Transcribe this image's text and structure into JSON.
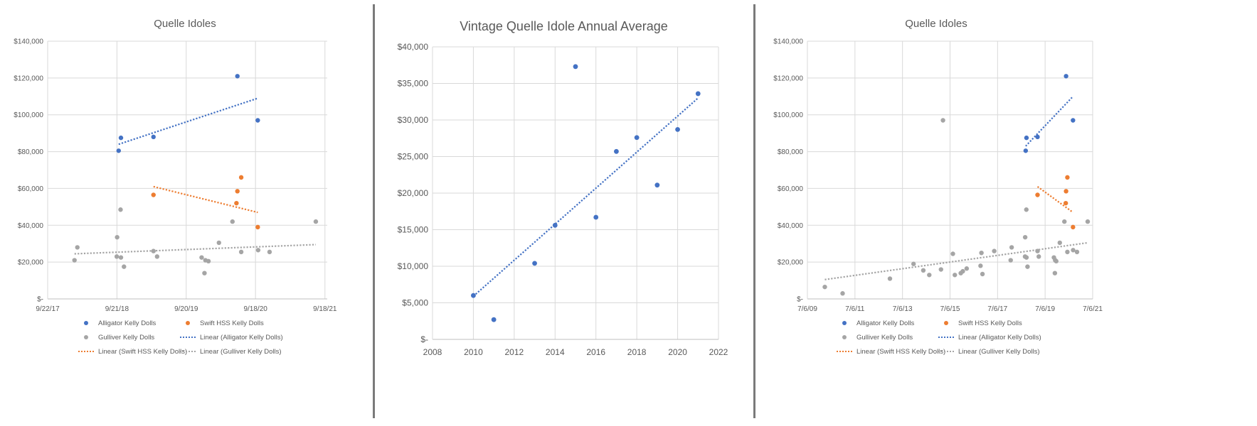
{
  "chart_data": [
    {
      "type": "scatter",
      "title": "Quelle Idoles",
      "xlabel": "",
      "ylabel": "",
      "x_axis": "date",
      "xlim": [
        "2017-09-22",
        "2021-09-30"
      ],
      "ylim": [
        0,
        140000
      ],
      "x_ticks": [
        "9/22/17",
        "9/21/18",
        "9/20/19",
        "9/18/20",
        "9/18/21"
      ],
      "y_ticks": [
        "$-",
        "$20,000",
        "$40,000",
        "$60,000",
        "$80,000",
        "$100,000",
        "$120,000",
        "$140,000"
      ],
      "grid": true,
      "legend_position": "bottom",
      "series": [
        {
          "name": "Alligator Kelly Dolls",
          "color": "#4472C4",
          "points": [
            [
              "2018-09-30",
              80500
            ],
            [
              "2018-10-12",
              87500
            ],
            [
              "2019-04-01",
              88000
            ],
            [
              "2020-06-15",
              121000
            ],
            [
              "2020-09-30",
              97000
            ]
          ]
        },
        {
          "name": "Swift HSS Kelly Dolls",
          "color": "#ED7D31",
          "points": [
            [
              "2019-04-01",
              56500
            ],
            [
              "2020-06-10",
              52000
            ],
            [
              "2020-06-15",
              58500
            ],
            [
              "2020-07-05",
              66000
            ],
            [
              "2020-09-30",
              39000
            ]
          ]
        },
        {
          "name": "Gulliver Kelly Dolls",
          "color": "#A5A5A5",
          "points": [
            [
              "2018-02-10",
              21000
            ],
            [
              "2018-02-25",
              28000
            ],
            [
              "2018-09-20",
              23000
            ],
            [
              "2018-09-22",
              33500
            ],
            [
              "2018-10-10",
              48500
            ],
            [
              "2018-10-12",
              22500
            ],
            [
              "2018-10-28",
              17500
            ],
            [
              "2019-04-01",
              26000
            ],
            [
              "2019-04-20",
              23000
            ],
            [
              "2019-12-10",
              22500
            ],
            [
              "2019-12-25",
              14000
            ],
            [
              "2019-12-30",
              21000
            ],
            [
              "2020-01-15",
              20500
            ],
            [
              "2020-03-10",
              30500
            ],
            [
              "2020-05-20",
              42000
            ],
            [
              "2020-07-05",
              25500
            ],
            [
              "2020-10-02",
              26500
            ],
            [
              "2020-12-01",
              25500
            ],
            [
              "2021-08-01",
              42000
            ]
          ]
        }
      ],
      "trendlines": [
        {
          "name": "Linear (Alligator Kelly Dolls)",
          "color": "#4472C4",
          "points": [
            [
              "2018-09-30",
              84000
            ],
            [
              "2020-09-30",
              109000
            ]
          ]
        },
        {
          "name": "Linear (Swift HSS Kelly Dolls)",
          "color": "#ED7D31",
          "points": [
            [
              "2019-04-01",
              61000
            ],
            [
              "2020-09-30",
              47000
            ]
          ]
        },
        {
          "name": "Linear (Gulliver Kelly Dolls)",
          "color": "#A5A5A5",
          "points": [
            [
              "2018-02-10",
              24500
            ],
            [
              "2021-08-01",
              29500
            ]
          ]
        }
      ]
    },
    {
      "type": "scatter",
      "title": "Vintage Quelle Idole Annual Average",
      "xlabel": "",
      "ylabel": "",
      "xlim": [
        2008,
        2022
      ],
      "ylim": [
        0,
        40000
      ],
      "x_ticks": [
        "2008",
        "2010",
        "2012",
        "2014",
        "2016",
        "2018",
        "2020",
        "2022"
      ],
      "y_ticks": [
        "$-",
        "$5,000",
        "$10,000",
        "$15,000",
        "$20,000",
        "$25,000",
        "$30,000",
        "$35,000",
        "$40,000"
      ],
      "grid": true,
      "series": [
        {
          "name": "",
          "color": "#4472C4",
          "points": [
            [
              2010,
              6000
            ],
            [
              2011,
              2700
            ],
            [
              2013,
              10400
            ],
            [
              2014,
              15600
            ],
            [
              2015,
              37300
            ],
            [
              2016,
              16700
            ],
            [
              2017,
              25700
            ],
            [
              2018,
              27600
            ],
            [
              2019,
              21100
            ],
            [
              2020,
              28700
            ],
            [
              2021,
              33600
            ]
          ]
        }
      ],
      "trendlines": [
        {
          "name": "",
          "color": "#4472C4",
          "points": [
            [
              2010,
              5900
            ],
            [
              2021,
              33000
            ]
          ]
        }
      ]
    },
    {
      "type": "scatter",
      "title": "Quelle Idoles",
      "xlabel": "",
      "ylabel": "",
      "x_axis": "date",
      "xlim": [
        "2009-07-06",
        "2021-07-31"
      ],
      "ylim": [
        0,
        140000
      ],
      "x_ticks": [
        "7/6/09",
        "7/6/11",
        "7/6/13",
        "7/6/15",
        "7/6/17",
        "7/6/19",
        "7/6/21"
      ],
      "y_ticks": [
        "$-",
        "$20,000",
        "$40,000",
        "$60,000",
        "$80,000",
        "$100,000",
        "$120,000",
        "$140,000"
      ],
      "grid": true,
      "legend_position": "bottom",
      "series": [
        {
          "name": "Alligator Kelly Dolls",
          "color": "#4472C4",
          "points": [
            [
              "2018-09-30",
              80500
            ],
            [
              "2018-10-12",
              87500
            ],
            [
              "2019-04-01",
              88000
            ],
            [
              "2020-06-15",
              121000
            ],
            [
              "2020-09-30",
              97000
            ]
          ]
        },
        {
          "name": "Swift HSS Kelly Dolls",
          "color": "#ED7D31",
          "points": [
            [
              "2019-04-01",
              56500
            ],
            [
              "2020-06-10",
              52000
            ],
            [
              "2020-06-15",
              58500
            ],
            [
              "2020-07-05",
              66000
            ],
            [
              "2020-09-30",
              39000
            ]
          ]
        },
        {
          "name": "Gulliver Kelly Dolls",
          "color": "#A5A5A5",
          "points": [
            [
              "2010-04-01",
              6500
            ],
            [
              "2011-01-01",
              3000
            ],
            [
              "2013-01-01",
              11000
            ],
            [
              "2014-01-01",
              19000
            ],
            [
              "2014-06-01",
              15500
            ],
            [
              "2014-09-01",
              13000
            ],
            [
              "2015-03-01",
              16000
            ],
            [
              "2015-04-01",
              97000
            ],
            [
              "2015-09-01",
              24500
            ],
            [
              "2015-10-01",
              13000
            ],
            [
              "2016-01-01",
              14000
            ],
            [
              "2016-02-01",
              15000
            ],
            [
              "2016-04-01",
              16500
            ],
            [
              "2016-11-01",
              18000
            ],
            [
              "2016-11-15",
              25000
            ],
            [
              "2016-12-01",
              13500
            ],
            [
              "2017-06-01",
              26000
            ],
            [
              "2018-02-10",
              21000
            ],
            [
              "2018-02-25",
              28000
            ],
            [
              "2018-09-20",
              23000
            ],
            [
              "2018-09-22",
              33500
            ],
            [
              "2018-10-10",
              48500
            ],
            [
              "2018-10-12",
              22500
            ],
            [
              "2018-10-28",
              17500
            ],
            [
              "2019-04-01",
              26000
            ],
            [
              "2019-04-20",
              23000
            ],
            [
              "2019-12-10",
              22500
            ],
            [
              "2019-12-25",
              14000
            ],
            [
              "2019-12-30",
              21000
            ],
            [
              "2020-01-15",
              20500
            ],
            [
              "2020-03-10",
              30500
            ],
            [
              "2020-05-20",
              42000
            ],
            [
              "2020-07-05",
              25500
            ],
            [
              "2020-10-02",
              26500
            ],
            [
              "2020-12-01",
              25500
            ],
            [
              "2021-05-15",
              42000
            ]
          ]
        }
      ],
      "trendlines": [
        {
          "name": "Linear (Alligator Kelly Dolls)",
          "color": "#4472C4",
          "points": [
            [
              "2018-09-30",
              83000
            ],
            [
              "2020-09-30",
              110000
            ]
          ]
        },
        {
          "name": "Linear (Swift HSS Kelly Dolls)",
          "color": "#ED7D31",
          "points": [
            [
              "2019-04-01",
              61000
            ],
            [
              "2020-09-30",
              47000
            ]
          ]
        },
        {
          "name": "Linear (Gulliver Kelly Dolls)",
          "color": "#A5A5A5",
          "points": [
            [
              "2010-04-01",
              10500
            ],
            [
              "2021-05-15",
              30500
            ]
          ]
        }
      ]
    }
  ]
}
